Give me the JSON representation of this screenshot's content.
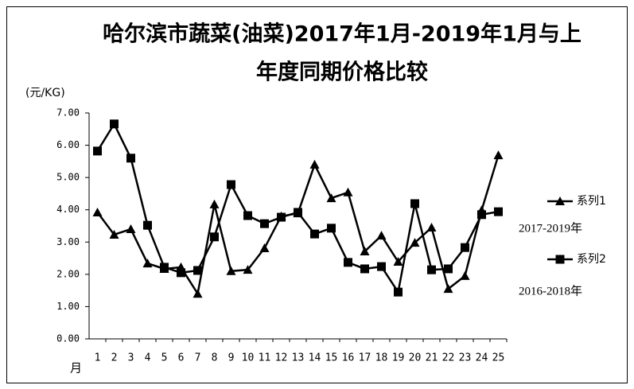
{
  "chart_data": {
    "type": "line",
    "title": [
      "哈尔滨市蔬菜(油菜)2017年1月-2019年1月与上",
      "年度同期价格比较"
    ],
    "y_unit": "(元/KG)",
    "x_label": "月",
    "categories": [
      "1",
      "2",
      "3",
      "4",
      "5",
      "6",
      "7",
      "8",
      "9",
      "10",
      "11",
      "12",
      "13",
      "14",
      "15",
      "16",
      "17",
      "18",
      "19",
      "20",
      "21",
      "22",
      "23",
      "24",
      "25"
    ],
    "series": [
      {
        "name": "系列1",
        "color": "#000000",
        "marker": "triangle",
        "annotation": "2017-2019年",
        "values": [
          3.92,
          3.23,
          3.4,
          2.34,
          2.17,
          2.22,
          1.4,
          4.17,
          2.1,
          2.14,
          2.81,
          3.8,
          3.89,
          5.4,
          4.36,
          4.54,
          2.71,
          3.2,
          2.39,
          2.98,
          3.45,
          1.55,
          1.95,
          3.99,
          5.69
        ]
      },
      {
        "name": "系列2",
        "color": "#000000",
        "marker": "square",
        "annotation": "2016-2018年",
        "values": [
          5.82,
          6.66,
          5.6,
          3.52,
          2.22,
          2.05,
          2.12,
          3.16,
          4.78,
          3.82,
          3.57,
          3.77,
          3.92,
          3.25,
          3.43,
          2.37,
          2.17,
          2.24,
          1.45,
          4.19,
          2.14,
          2.17,
          2.83,
          3.85,
          3.94
        ]
      }
    ],
    "ylim": [
      0,
      7
    ],
    "yticks": [
      {
        "value": 0,
        "label": "0.00"
      },
      {
        "value": 1,
        "label": "1.00"
      },
      {
        "value": 2,
        "label": "2.00"
      },
      {
        "value": 3,
        "label": "3.00"
      },
      {
        "value": 4,
        "label": "4.00"
      },
      {
        "value": 5,
        "label": "5.00"
      },
      {
        "value": 6,
        "label": "6.00"
      },
      {
        "value": 7,
        "label": "7.00"
      }
    ],
    "grid": false
  }
}
